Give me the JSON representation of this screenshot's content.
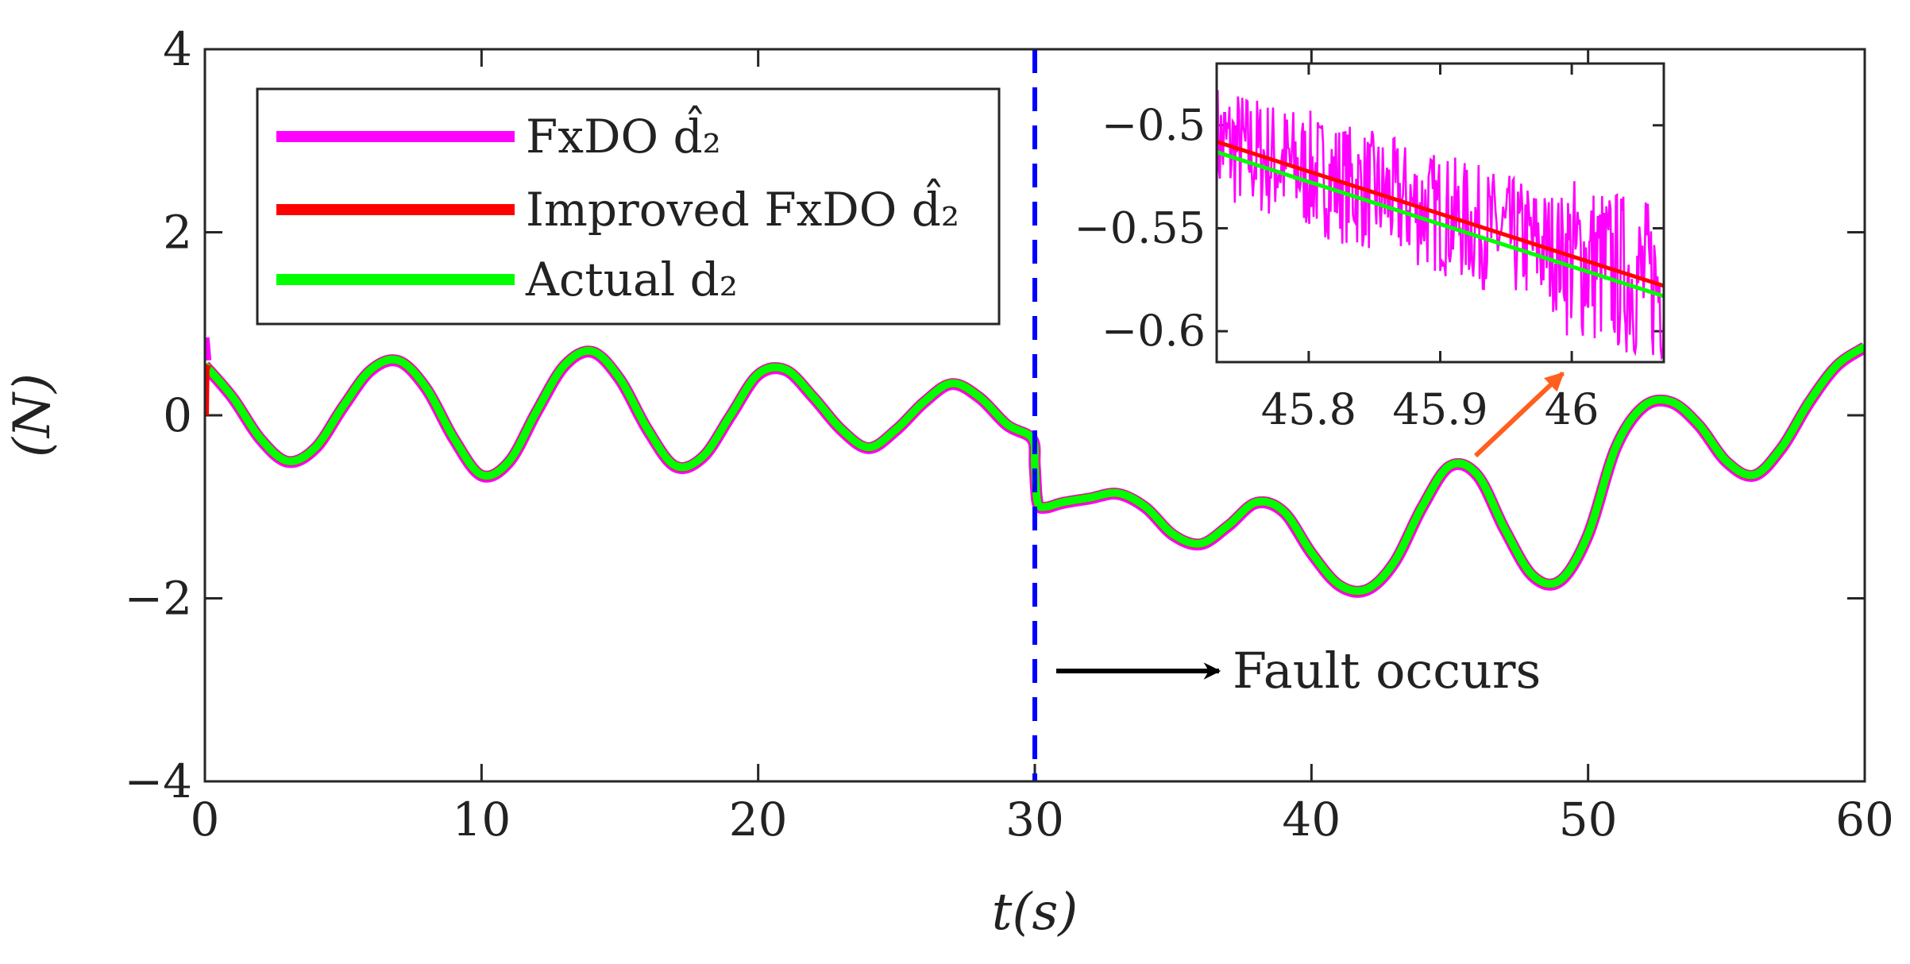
{
  "colors": {
    "fxdo": "#ff00ff",
    "improved": "#ff0000",
    "actual": "#00ff00",
    "fault_line": "#0000ff",
    "zoom_arrow": "#ff5f1f",
    "axis": "#262626"
  },
  "chart_data": {
    "type": "line",
    "xlabel": "t(s)",
    "ylabel": "(N)",
    "xlim": [
      0,
      60
    ],
    "ylim": [
      -4,
      4
    ],
    "xticks": [
      0,
      10,
      20,
      30,
      40,
      50,
      60
    ],
    "yticks": [
      -4,
      -2,
      0,
      2,
      4
    ],
    "x_tick_labels": [
      "0",
      "10",
      "20",
      "30",
      "40",
      "50",
      "60"
    ],
    "y_tick_labels": [
      "−4",
      "−2",
      "0",
      "2",
      "4"
    ],
    "legend": {
      "placement": "top-left",
      "entries": [
        {
          "label": "FxDO d̂₂",
          "color": "#ff00ff"
        },
        {
          "label": "Improved FxDO d̂₂",
          "color": "#ff0000"
        },
        {
          "label": "Actual d₂",
          "color": "#00ff00"
        }
      ]
    },
    "series": [
      {
        "name": "Actual d2",
        "x": [
          0,
          1,
          2,
          3,
          4,
          5,
          6,
          7,
          8,
          9,
          10,
          11,
          12,
          13,
          14,
          15,
          16,
          17,
          18,
          19,
          20,
          21,
          22,
          23,
          24,
          25,
          26,
          27,
          28,
          29,
          29.9,
          30,
          30.1,
          30.4,
          31,
          32,
          33,
          34,
          35,
          36,
          37,
          38,
          39,
          40,
          41,
          42,
          43,
          44,
          45,
          46,
          47,
          48,
          49,
          50,
          51,
          52,
          53,
          54,
          55,
          56,
          57,
          58,
          59,
          60
        ],
        "y": [
          0.55,
          0.2,
          -0.25,
          -0.5,
          -0.35,
          0.1,
          0.5,
          0.6,
          0.3,
          -0.25,
          -0.65,
          -0.5,
          0.05,
          0.55,
          0.7,
          0.4,
          -0.15,
          -0.55,
          -0.45,
          0.0,
          0.45,
          0.5,
          0.2,
          -0.15,
          -0.35,
          -0.15,
          0.15,
          0.35,
          0.2,
          -0.1,
          -0.25,
          -0.55,
          -0.95,
          -1.0,
          -0.95,
          -0.9,
          -0.85,
          -1.0,
          -1.3,
          -1.4,
          -1.2,
          -0.95,
          -1.05,
          -1.5,
          -1.85,
          -1.9,
          -1.6,
          -1.0,
          -0.55,
          -0.65,
          -1.25,
          -1.75,
          -1.8,
          -1.3,
          -0.35,
          0.1,
          0.15,
          -0.1,
          -0.5,
          -0.65,
          -0.35,
          0.15,
          0.55,
          0.75
        ]
      },
      {
        "name": "FxDO d2 (estimate)",
        "notes": "tracks actual closely; initial transient to 0.85 at t=0"
      },
      {
        "name": "Improved FxDO d2 (estimate)",
        "notes": "tracks actual closely; starts at 0 at t=0"
      }
    ],
    "annotations": [
      {
        "text": "Fault occurs",
        "x": 30,
        "type": "vertical-dashed-line"
      }
    ],
    "inset": {
      "xlim": [
        45.73,
        46.07
      ],
      "ylim": [
        -0.615,
        -0.47
      ],
      "xticks": [
        45.8,
        45.9,
        46
      ],
      "yticks": [
        -0.6,
        -0.55,
        -0.5
      ],
      "x_tick_labels": [
        "45.8",
        "45.9",
        "46"
      ],
      "y_tick_labels": [
        "−0.6",
        "−0.55",
        "−0.5"
      ],
      "improved_line": {
        "x": [
          45.73,
          46.07
        ],
        "y": [
          -0.508,
          -0.578
        ]
      },
      "actual_line": {
        "x": [
          45.73,
          46.07
        ],
        "y": [
          -0.513,
          -0.583
        ]
      },
      "fxdo_noise_band": 0.03
    }
  }
}
